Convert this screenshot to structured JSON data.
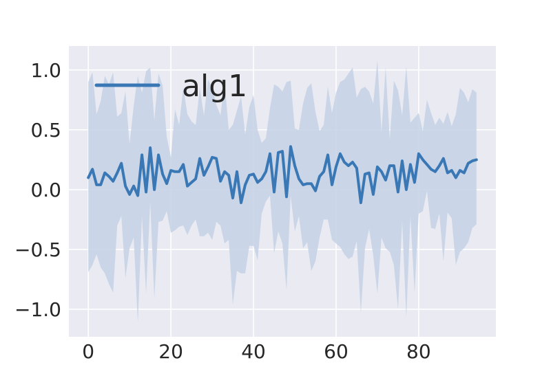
{
  "chart_data": {
    "type": "line",
    "title": "",
    "xlabel": "",
    "ylabel": "",
    "xlim": [
      -4.7,
      98.7
    ],
    "ylim": [
      -1.23,
      1.2
    ],
    "grid": true,
    "legend_placement": "top-left",
    "colors": {
      "line": "#3a78b5",
      "band": "#c6d4e6",
      "background": "#e9eaf2",
      "grid": "#ffffff"
    },
    "x_ticks": [
      0,
      20,
      40,
      60,
      80
    ],
    "x_tick_labels": [
      "0",
      "20",
      "40",
      "60",
      "80"
    ],
    "y_ticks": [
      -1.0,
      -0.5,
      0.0,
      0.5,
      1.0
    ],
    "y_tick_labels": [
      "−1.0",
      "−0.5",
      "0.0",
      "0.5",
      "1.0"
    ],
    "series": [
      {
        "name": "alg1",
        "x": [
          0,
          1,
          2,
          3,
          4,
          5,
          6,
          7,
          8,
          9,
          10,
          11,
          12,
          13,
          14,
          15,
          16,
          17,
          18,
          19,
          20,
          21,
          22,
          23,
          24,
          25,
          26,
          27,
          28,
          29,
          30,
          31,
          32,
          33,
          34,
          35,
          36,
          37,
          38,
          39,
          40,
          41,
          42,
          43,
          44,
          45,
          46,
          47,
          48,
          49,
          50,
          51,
          52,
          53,
          54,
          55,
          56,
          57,
          58,
          59,
          60,
          61,
          62,
          63,
          64,
          65,
          66,
          67,
          68,
          69,
          70,
          71,
          72,
          73,
          74,
          75,
          76,
          77,
          78,
          79,
          80,
          81,
          82,
          83,
          84,
          85,
          86,
          87,
          88,
          89,
          90,
          91,
          92,
          93,
          94
        ],
        "y": [
          0.1,
          0.17,
          0.04,
          0.04,
          0.14,
          0.11,
          0.07,
          0.14,
          0.22,
          0.03,
          -0.04,
          0.03,
          -0.05,
          0.29,
          -0.02,
          0.35,
          0.0,
          0.29,
          0.13,
          0.05,
          0.16,
          0.15,
          0.15,
          0.21,
          0.03,
          0.06,
          0.09,
          0.26,
          0.12,
          0.19,
          0.27,
          0.26,
          0.07,
          0.15,
          0.12,
          -0.07,
          0.15,
          -0.11,
          0.04,
          0.12,
          0.13,
          0.06,
          0.09,
          0.15,
          0.3,
          -0.02,
          0.31,
          0.32,
          -0.06,
          0.36,
          0.2,
          0.09,
          0.04,
          0.05,
          0.05,
          -0.01,
          0.11,
          0.15,
          0.29,
          0.04,
          0.19,
          0.3,
          0.23,
          0.2,
          0.23,
          0.18,
          -0.11,
          0.13,
          0.14,
          -0.04,
          0.19,
          0.15,
          0.08,
          0.2,
          0.2,
          -0.02,
          0.24,
          0.0,
          0.21,
          0.06,
          0.3,
          0.25,
          0.21,
          0.17,
          0.15,
          0.2,
          0.26,
          0.14,
          0.16,
          0.1,
          0.16,
          0.14,
          0.22,
          0.24,
          0.25
        ],
        "upper": [
          0.9,
          0.98,
          0.63,
          0.74,
          0.95,
          0.88,
          0.98,
          0.61,
          0.64,
          0.82,
          0.38,
          0.7,
          0.95,
          0.81,
          0.99,
          1.02,
          0.58,
          0.97,
          0.87,
          0.44,
          0.27,
          0.67,
          0.54,
          0.85,
          0.63,
          0.57,
          0.54,
          0.85,
          0.62,
          0.92,
          0.85,
          0.71,
          0.62,
          0.9,
          0.5,
          0.54,
          0.66,
          0.78,
          0.46,
          0.69,
          0.79,
          0.5,
          0.39,
          0.43,
          0.68,
          0.88,
          0.86,
          0.82,
          0.9,
          0.91,
          0.51,
          0.5,
          0.72,
          0.85,
          0.89,
          0.65,
          0.49,
          0.54,
          0.86,
          0.64,
          0.81,
          0.9,
          0.92,
          0.97,
          1.02,
          0.77,
          0.84,
          0.86,
          0.82,
          0.72,
          1.08,
          0.48,
          1.02,
          0.42,
          0.91,
          0.83,
          0.62,
          1.03,
          0.56,
          0.6,
          0.64,
          0.49,
          0.75,
          0.64,
          0.54,
          0.6,
          0.55,
          0.65,
          0.53,
          0.63,
          0.85,
          0.81,
          0.73,
          0.84,
          0.81
        ],
        "lower": [
          -0.69,
          -0.63,
          -0.54,
          -0.65,
          -0.7,
          -0.79,
          -0.86,
          -0.3,
          -0.22,
          -0.74,
          -0.49,
          -0.4,
          -1.11,
          -0.22,
          -0.87,
          -0.1,
          -0.91,
          -0.27,
          -0.26,
          -0.18,
          -0.36,
          -0.34,
          -0.31,
          -0.3,
          -0.38,
          -0.3,
          -0.25,
          -0.39,
          -0.39,
          -0.36,
          -0.42,
          -0.27,
          -0.3,
          -0.45,
          -0.42,
          -0.96,
          -0.68,
          -0.7,
          -0.7,
          -0.47,
          -0.47,
          -0.59,
          -0.2,
          -0.1,
          -0.05,
          -0.53,
          -0.35,
          -0.45,
          -0.84,
          -0.05,
          -0.35,
          -0.22,
          -0.49,
          -0.44,
          -0.68,
          -0.6,
          -0.4,
          -0.25,
          -0.25,
          -0.42,
          -0.45,
          -0.48,
          -0.54,
          -0.58,
          -0.56,
          -0.43,
          -1.03,
          -0.49,
          -0.33,
          -0.55,
          -0.87,
          -0.4,
          -0.49,
          -0.52,
          -0.63,
          -1.0,
          -0.26,
          -1.07,
          -0.22,
          -0.86,
          -0.2,
          -0.18,
          -0.01,
          -0.32,
          -0.33,
          -0.2,
          -0.6,
          -0.19,
          -0.24,
          -0.63,
          -0.52,
          -0.49,
          -0.44,
          -0.32,
          -0.29
        ]
      }
    ]
  }
}
